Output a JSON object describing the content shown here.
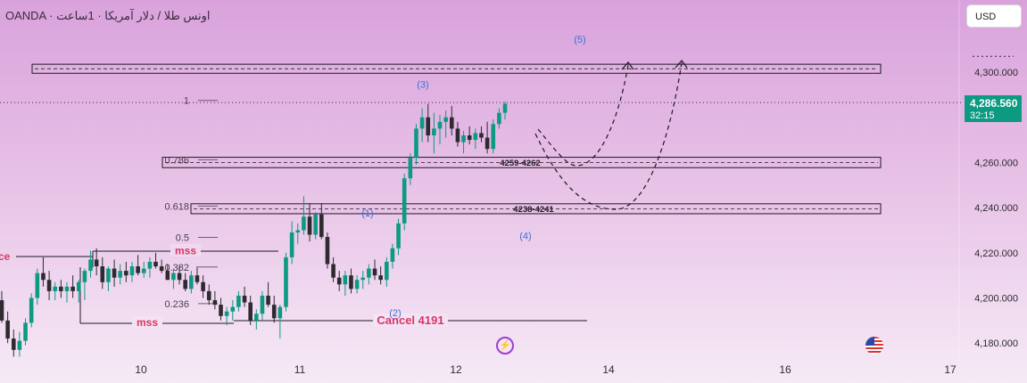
{
  "header": {
    "title": "OANDA · اونس طلا / دلار آمریکا · 1ساعت",
    "currency": "USD"
  },
  "price_tag": {
    "price": "4,286.560",
    "countdown": "32:15"
  },
  "colors": {
    "up": "#0c9a82",
    "down": "#2e2a30",
    "wave_label": "#3d6fd6",
    "mss": "#d63864",
    "fib_text": "#4a3b4c"
  },
  "icons": [
    "lightning-icon",
    "us-flag-icon"
  ],
  "chart_data": {
    "type": "candlestick",
    "ylim": [
      4172,
      4317
    ],
    "y_ticks": [
      4180,
      4200,
      4220,
      4240,
      4260,
      4300
    ],
    "y_tick_labels": [
      "4,180.000",
      "4,200.000",
      "4,220.000",
      "4,240.000",
      "4,260.000",
      "4,300.000"
    ],
    "x_ticks": [
      {
        "label": "10",
        "x": 10
      },
      {
        "label": "11",
        "x": 11
      },
      {
        "label": "12",
        "x": 12
      },
      {
        "label": "14",
        "x": 14
      },
      {
        "label": "16",
        "x": 16
      },
      {
        "label": "17",
        "x": 17
      }
    ],
    "current_price": 4286.56,
    "candles": [
      [
        4199,
        4203,
        4189,
        4190
      ],
      [
        4190,
        4194,
        4180,
        4182
      ],
      [
        4182,
        4186,
        4174,
        4177
      ],
      [
        4177,
        4185,
        4174,
        4181
      ],
      [
        4181,
        4191,
        4179,
        4189
      ],
      [
        4189,
        4202,
        4187,
        4200
      ],
      [
        4200,
        4213,
        4197,
        4211
      ],
      [
        4211,
        4218,
        4205,
        4208
      ],
      [
        4208,
        4212,
        4199,
        4203
      ],
      [
        4203,
        4207,
        4199,
        4205
      ],
      [
        4205,
        4208,
        4200,
        4203
      ],
      [
        4203,
        4207,
        4198,
        4205
      ],
      [
        4205,
        4210,
        4200,
        4203
      ],
      [
        4203,
        4208,
        4198,
        4207
      ],
      [
        4207,
        4213,
        4199,
        4212
      ],
      [
        4212,
        4221,
        4209,
        4217
      ],
      [
        4217,
        4222,
        4210,
        4214
      ],
      [
        4214,
        4218,
        4204,
        4207
      ],
      [
        4207,
        4214,
        4203,
        4213
      ],
      [
        4213,
        4217,
        4205,
        4209
      ],
      [
        4209,
        4215,
        4206,
        4212
      ],
      [
        4212,
        4216,
        4207,
        4210
      ],
      [
        4210,
        4216,
        4207,
        4214
      ],
      [
        4214,
        4219,
        4210,
        4211
      ],
      [
        4211,
        4216,
        4209,
        4213
      ],
      [
        4213,
        4218,
        4209,
        4216
      ],
      [
        4216,
        4220,
        4213,
        4214
      ],
      [
        4214,
        4217,
        4211,
        4212
      ],
      [
        4212,
        4215,
        4208,
        4208
      ],
      [
        4208,
        4213,
        4204,
        4211
      ],
      [
        4211,
        4214,
        4206,
        4208
      ],
      [
        4208,
        4211,
        4203,
        4204
      ],
      [
        4204,
        4212,
        4202,
        4210
      ],
      [
        4210,
        4214,
        4206,
        4207
      ],
      [
        4207,
        4210,
        4200,
        4203
      ],
      [
        4203,
        4206,
        4197,
        4199
      ],
      [
        4199,
        4203,
        4195,
        4197
      ],
      [
        4197,
        4200,
        4190,
        4192
      ],
      [
        4192,
        4196,
        4188,
        4194
      ],
      [
        4194,
        4199,
        4190,
        4196
      ],
      [
        4196,
        4203,
        4194,
        4201
      ],
      [
        4201,
        4205,
        4196,
        4198
      ],
      [
        4198,
        4201,
        4188,
        4190
      ],
      [
        4190,
        4195,
        4186,
        4193
      ],
      [
        4193,
        4203,
        4190,
        4201
      ],
      [
        4201,
        4207,
        4196,
        4197
      ],
      [
        4197,
        4201,
        4189,
        4191
      ],
      [
        4191,
        4197,
        4182,
        4196
      ],
      [
        4196,
        4220,
        4194,
        4218
      ],
      [
        4218,
        4234,
        4215,
        4229
      ],
      [
        4229,
        4233,
        4224,
        4230
      ],
      [
        4230,
        4245,
        4228,
        4236
      ],
      [
        4236,
        4242,
        4225,
        4228
      ],
      [
        4228,
        4238,
        4226,
        4237
      ],
      [
        4237,
        4242,
        4226,
        4227
      ],
      [
        4227,
        4229,
        4213,
        4215
      ],
      [
        4215,
        4218,
        4207,
        4209
      ],
      [
        4209,
        4212,
        4203,
        4206
      ],
      [
        4206,
        4212,
        4201,
        4210
      ],
      [
        4210,
        4213,
        4202,
        4204
      ],
      [
        4204,
        4210,
        4202,
        4208
      ],
      [
        4208,
        4212,
        4204,
        4209
      ],
      [
        4209,
        4215,
        4206,
        4213
      ],
      [
        4213,
        4217,
        4208,
        4210
      ],
      [
        4210,
        4214,
        4206,
        4208
      ],
      [
        4208,
        4218,
        4205,
        4216
      ],
      [
        4216,
        4224,
        4213,
        4222
      ],
      [
        4222,
        4235,
        4219,
        4233
      ],
      [
        4233,
        4255,
        4230,
        4253
      ],
      [
        4253,
        4264,
        4250,
        4262
      ],
      [
        4262,
        4277,
        4259,
        4275
      ],
      [
        4275,
        4284,
        4269,
        4280
      ],
      [
        4280,
        4286,
        4269,
        4272
      ],
      [
        4272,
        4282,
        4264,
        4275
      ],
      [
        4275,
        4281,
        4268,
        4278
      ],
      [
        4278,
        4283,
        4271,
        4280
      ],
      [
        4280,
        4285,
        4272,
        4275
      ],
      [
        4275,
        4278,
        4267,
        4269
      ],
      [
        4269,
        4274,
        4264,
        4272
      ],
      [
        4272,
        4276,
        4268,
        4270
      ],
      [
        4270,
        4275,
        4266,
        4273
      ],
      [
        4273,
        4276,
        4269,
        4271
      ],
      [
        4271,
        4278,
        4264,
        4266
      ],
      [
        4266,
        4279,
        4264,
        4277
      ],
      [
        4277,
        4284,
        4275,
        4282
      ],
      [
        4282,
        4287,
        4279,
        4286
      ]
    ],
    "zones": [
      {
        "label": "",
        "top": 4303.5,
        "bottom": 4299.5
      },
      {
        "label": "4259-4262",
        "top": 4262.3,
        "bottom": 4257.7
      },
      {
        "label": "4238-4241",
        "top": 4241.7,
        "bottom": 4237.3
      }
    ],
    "fib_levels": [
      {
        "label": "1",
        "price": 4287.5
      },
      {
        "label": "0.786",
        "price": 4261.2
      },
      {
        "label": "0.618",
        "price": 4240.7
      },
      {
        "label": "0.5",
        "price": 4226.8
      },
      {
        "label": "0.382",
        "price": 4213.7
      },
      {
        "label": "0.236",
        "price": 4197.5
      }
    ],
    "wave_labels": [
      {
        "label": "(1)",
        "x": 412,
        "price": 4236
      },
      {
        "label": "(2)",
        "x": 443,
        "price": 4192
      },
      {
        "label": "(3)",
        "x": 474,
        "price": 4293
      },
      {
        "label": "(4)",
        "x": 589,
        "price": 4226
      },
      {
        "label": "(5)",
        "x": 650,
        "price": 4313
      }
    ],
    "annotations": [
      {
        "id": "mss-upper",
        "text": "mss"
      },
      {
        "id": "mss-lower",
        "text": "mss"
      },
      {
        "id": "cancel",
        "text": "Cancel 4191"
      },
      {
        "id": "edge",
        "text": "ce"
      }
    ]
  }
}
